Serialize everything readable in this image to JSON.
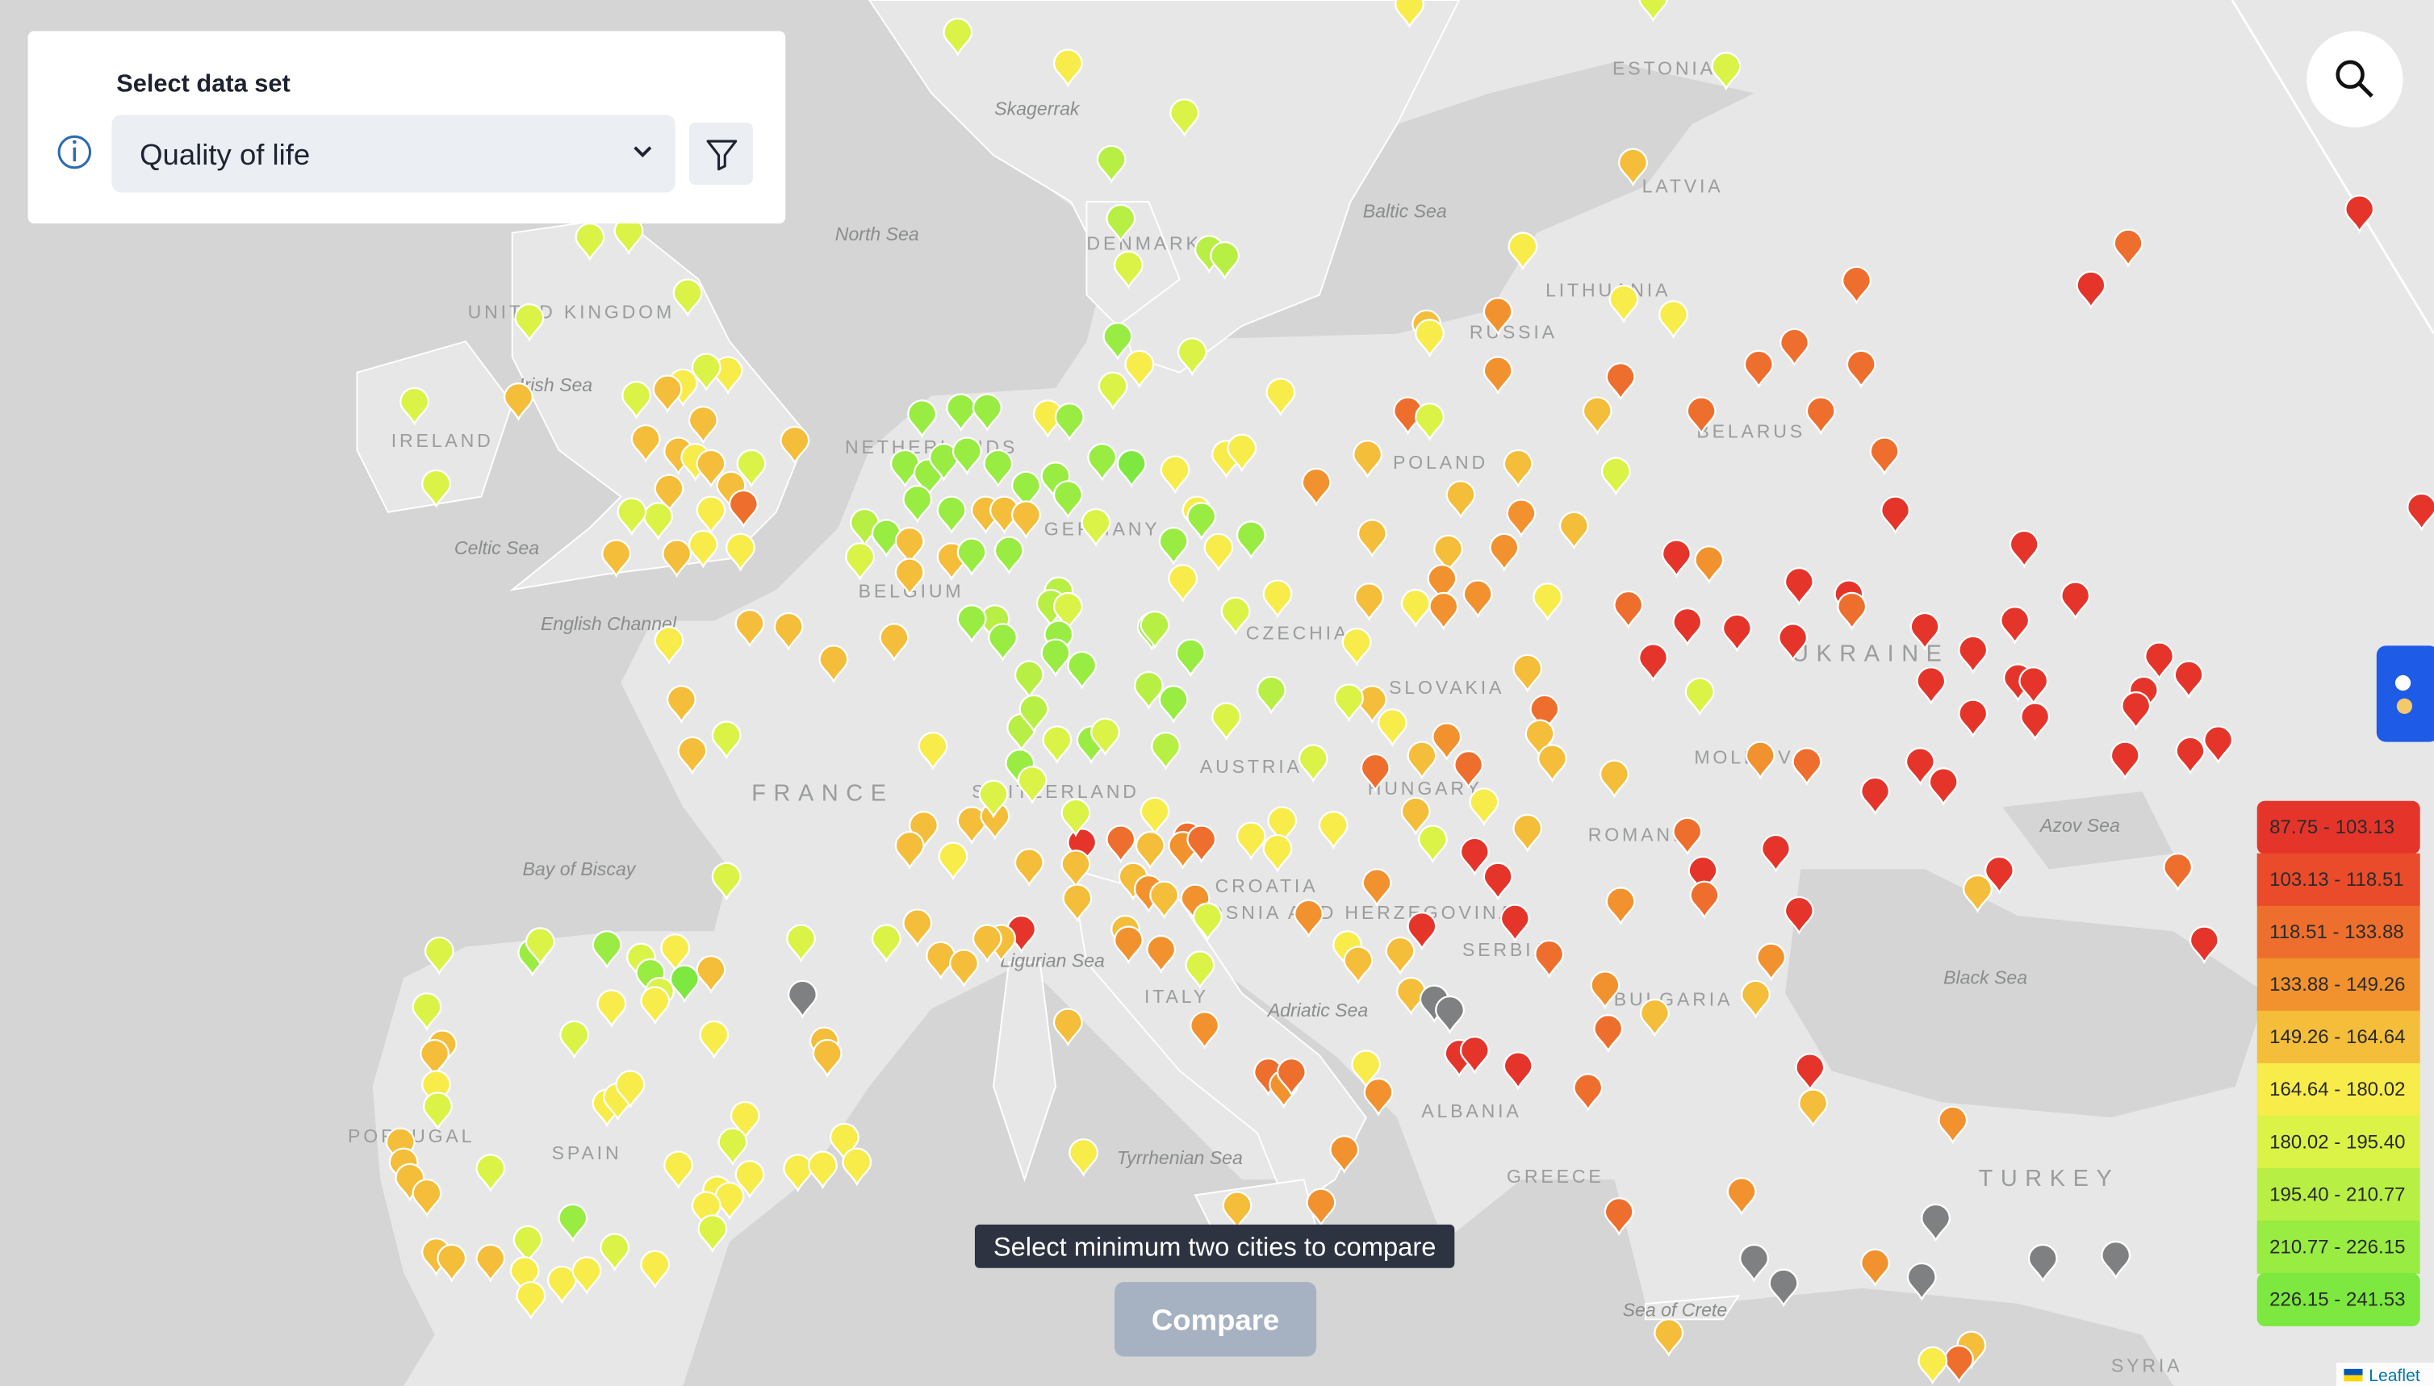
{
  "panel": {
    "title": "Select data set",
    "selected": "Quality of life"
  },
  "legend": [
    {
      "label": "87.75 - 103.13",
      "color": "#e5352b"
    },
    {
      "label": "103.13 - 118.51",
      "color": "#ea4b2b"
    },
    {
      "label": "118.51 - 133.88",
      "color": "#ee6f2d"
    },
    {
      "label": "133.88 - 149.26",
      "color": "#f1922f"
    },
    {
      "label": "149.26 - 164.64",
      "color": "#f4bd3a"
    },
    {
      "label": "164.64 - 180.02",
      "color": "#f7ec4a"
    },
    {
      "label": "180.02 - 195.40",
      "color": "#daf346"
    },
    {
      "label": "195.40 - 210.77",
      "color": "#b7ef44"
    },
    {
      "label": "210.77 - 226.15",
      "color": "#98ec42"
    },
    {
      "label": "226.15 - 241.53",
      "color": "#7de83f"
    }
  ],
  "no_data_color": "#7f8081",
  "tooltip": "Select minimum two cities to compare",
  "compare_button": "Compare",
  "attribution": "Leaflet",
  "map_labels": [
    "Skagerrak",
    "North Sea",
    "Baltic Sea",
    "ESTONIA",
    "LATVIA",
    "LITHUANIA",
    "RUSSIA",
    "DENMARK",
    "UNITED KINGDOM",
    "Irish Sea",
    "IRELAND",
    "Celtic Sea",
    "English Channel",
    "NETHERLANDS",
    "BELGIUM",
    "GERMANY",
    "POLAND",
    "BELARUS",
    "UKRAINE",
    "CZECHIA",
    "SLOVAKIA",
    "AUSTRIA",
    "HUNGARY",
    "FRANCE",
    "Bay of Biscay",
    "SWITZERLAND",
    "CROATIA",
    "BOSNIA AND HERZEGOVINA",
    "SERBIA",
    "ROMANIA",
    "MOLDOVA",
    "Azov Sea",
    "Black Sea",
    "BULGARIA",
    "Adriatic Sea",
    "Ligurian Sea",
    "ITALY",
    "Tyrrhenian Sea",
    "ALBANIA",
    "GREECE",
    "TURKEY",
    "Sea of Crete",
    "SYRIA",
    "SPAIN",
    "PORTUGAL"
  ]
}
